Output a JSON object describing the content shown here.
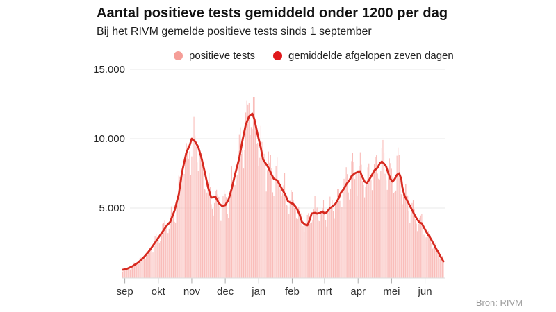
{
  "header": {
    "title": "Aantal positieve tests gemiddeld onder 1200 per dag",
    "subtitle": "Bij het RIVM gemelde positieve tests sinds 1 september"
  },
  "legend": {
    "items": [
      {
        "label": "positieve tests",
        "color": "#f59e98"
      },
      {
        "label": "gemiddelde afgelopen zeven dagen",
        "color": "#e0191c"
      }
    ]
  },
  "source": {
    "label": "Bron: RIVM"
  },
  "colors": {
    "bar": "#f8b5b1",
    "line": "#d7291f",
    "grid": "#eaeaea",
    "baseline": "#dddddd",
    "tick": "#aaaaaa"
  },
  "chart_data": {
    "type": "bar+line",
    "title": "Aantal positieve tests gemiddeld onder 1200 per dag",
    "x_axis": {
      "tick_labels": [
        "sep",
        "okt",
        "nov",
        "dec",
        "jan",
        "feb",
        "mrt",
        "apr",
        "mei",
        "jun"
      ],
      "tick_days": [
        2,
        33,
        64,
        95,
        126,
        157,
        187,
        218,
        249,
        280
      ],
      "days_total": 298,
      "start": "1 september"
    },
    "y_axis": {
      "ticks": [
        {
          "label": "15.000",
          "value": 15000
        },
        {
          "label": "10.000",
          "value": 10000
        },
        {
          "label": "5.000",
          "value": 5000
        }
      ],
      "range": [
        0,
        15000
      ],
      "grid": true
    },
    "legend_position": "top",
    "series": [
      {
        "name": "positieve tests",
        "type": "bar",
        "color": "#f8b5b1",
        "derived_from": "gemiddelde afgelopen zeven dagen",
        "weekly_factors": [
          0.84,
          0.95,
          1.08,
          1.15,
          1.1,
          1.0,
          0.9
        ],
        "jitter": 0.1,
        "max_value": 13000
      },
      {
        "name": "gemiddelde afgelopen zeven dagen",
        "type": "line",
        "color": "#d7291f",
        "points": [
          [
            0,
            550
          ],
          [
            4,
            620
          ],
          [
            9,
            800
          ],
          [
            14,
            1050
          ],
          [
            19,
            1400
          ],
          [
            24,
            1850
          ],
          [
            29,
            2400
          ],
          [
            33,
            2850
          ],
          [
            37,
            3300
          ],
          [
            41,
            3750
          ],
          [
            44,
            4000
          ],
          [
            48,
            4800
          ],
          [
            52,
            6000
          ],
          [
            55,
            7600
          ],
          [
            59,
            9000
          ],
          [
            62,
            9500
          ],
          [
            64,
            10000
          ],
          [
            67,
            9800
          ],
          [
            70,
            9400
          ],
          [
            73,
            8600
          ],
          [
            76,
            7600
          ],
          [
            79,
            6500
          ],
          [
            82,
            5750
          ],
          [
            86,
            5800
          ],
          [
            89,
            5350
          ],
          [
            92,
            5150
          ],
          [
            95,
            5200
          ],
          [
            98,
            5600
          ],
          [
            101,
            6400
          ],
          [
            104,
            7400
          ],
          [
            108,
            8600
          ],
          [
            111,
            9900
          ],
          [
            114,
            11000
          ],
          [
            117,
            11600
          ],
          [
            120,
            11800
          ],
          [
            122,
            11400
          ],
          [
            125,
            10300
          ],
          [
            128,
            9300
          ],
          [
            130,
            8500
          ],
          [
            133,
            8150
          ],
          [
            135,
            7900
          ],
          [
            138,
            7400
          ],
          [
            140,
            7100
          ],
          [
            143,
            7000
          ],
          [
            146,
            6600
          ],
          [
            148,
            6300
          ],
          [
            151,
            5900
          ],
          [
            153,
            5500
          ],
          [
            156,
            5350
          ],
          [
            158,
            5300
          ],
          [
            161,
            5000
          ],
          [
            164,
            4500
          ],
          [
            166,
            4000
          ],
          [
            169,
            3800
          ],
          [
            171,
            3750
          ],
          [
            173,
            4100
          ],
          [
            175,
            4600
          ],
          [
            178,
            4650
          ],
          [
            180,
            4600
          ],
          [
            183,
            4650
          ],
          [
            185,
            4750
          ],
          [
            187,
            4600
          ],
          [
            189,
            4700
          ],
          [
            192,
            5000
          ],
          [
            194,
            5100
          ],
          [
            197,
            5300
          ],
          [
            200,
            5700
          ],
          [
            202,
            6100
          ],
          [
            205,
            6400
          ],
          [
            207,
            6700
          ],
          [
            210,
            7000
          ],
          [
            212,
            7300
          ],
          [
            215,
            7500
          ],
          [
            218,
            7600
          ],
          [
            220,
            7650
          ],
          [
            221,
            7400
          ],
          [
            224,
            6900
          ],
          [
            226,
            6800
          ],
          [
            228,
            7000
          ],
          [
            231,
            7400
          ],
          [
            233,
            7700
          ],
          [
            236,
            7900
          ],
          [
            238,
            8200
          ],
          [
            240,
            8350
          ],
          [
            242,
            8200
          ],
          [
            244,
            8000
          ],
          [
            246,
            7500
          ],
          [
            248,
            7100
          ],
          [
            250,
            6900
          ],
          [
            252,
            7100
          ],
          [
            254,
            7400
          ],
          [
            256,
            7500
          ],
          [
            258,
            7100
          ],
          [
            259,
            6500
          ],
          [
            261,
            5900
          ],
          [
            263,
            5600
          ],
          [
            265,
            5300
          ],
          [
            267,
            5000
          ],
          [
            269,
            4700
          ],
          [
            271,
            4400
          ],
          [
            273,
            4150
          ],
          [
            275,
            3950
          ],
          [
            277,
            3900
          ],
          [
            279,
            3600
          ],
          [
            281,
            3300
          ],
          [
            283,
            3050
          ],
          [
            284,
            2950
          ],
          [
            286,
            2700
          ],
          [
            288,
            2400
          ],
          [
            290,
            2100
          ],
          [
            292,
            1850
          ],
          [
            294,
            1550
          ],
          [
            296,
            1300
          ],
          [
            297,
            1150
          ]
        ]
      }
    ]
  }
}
